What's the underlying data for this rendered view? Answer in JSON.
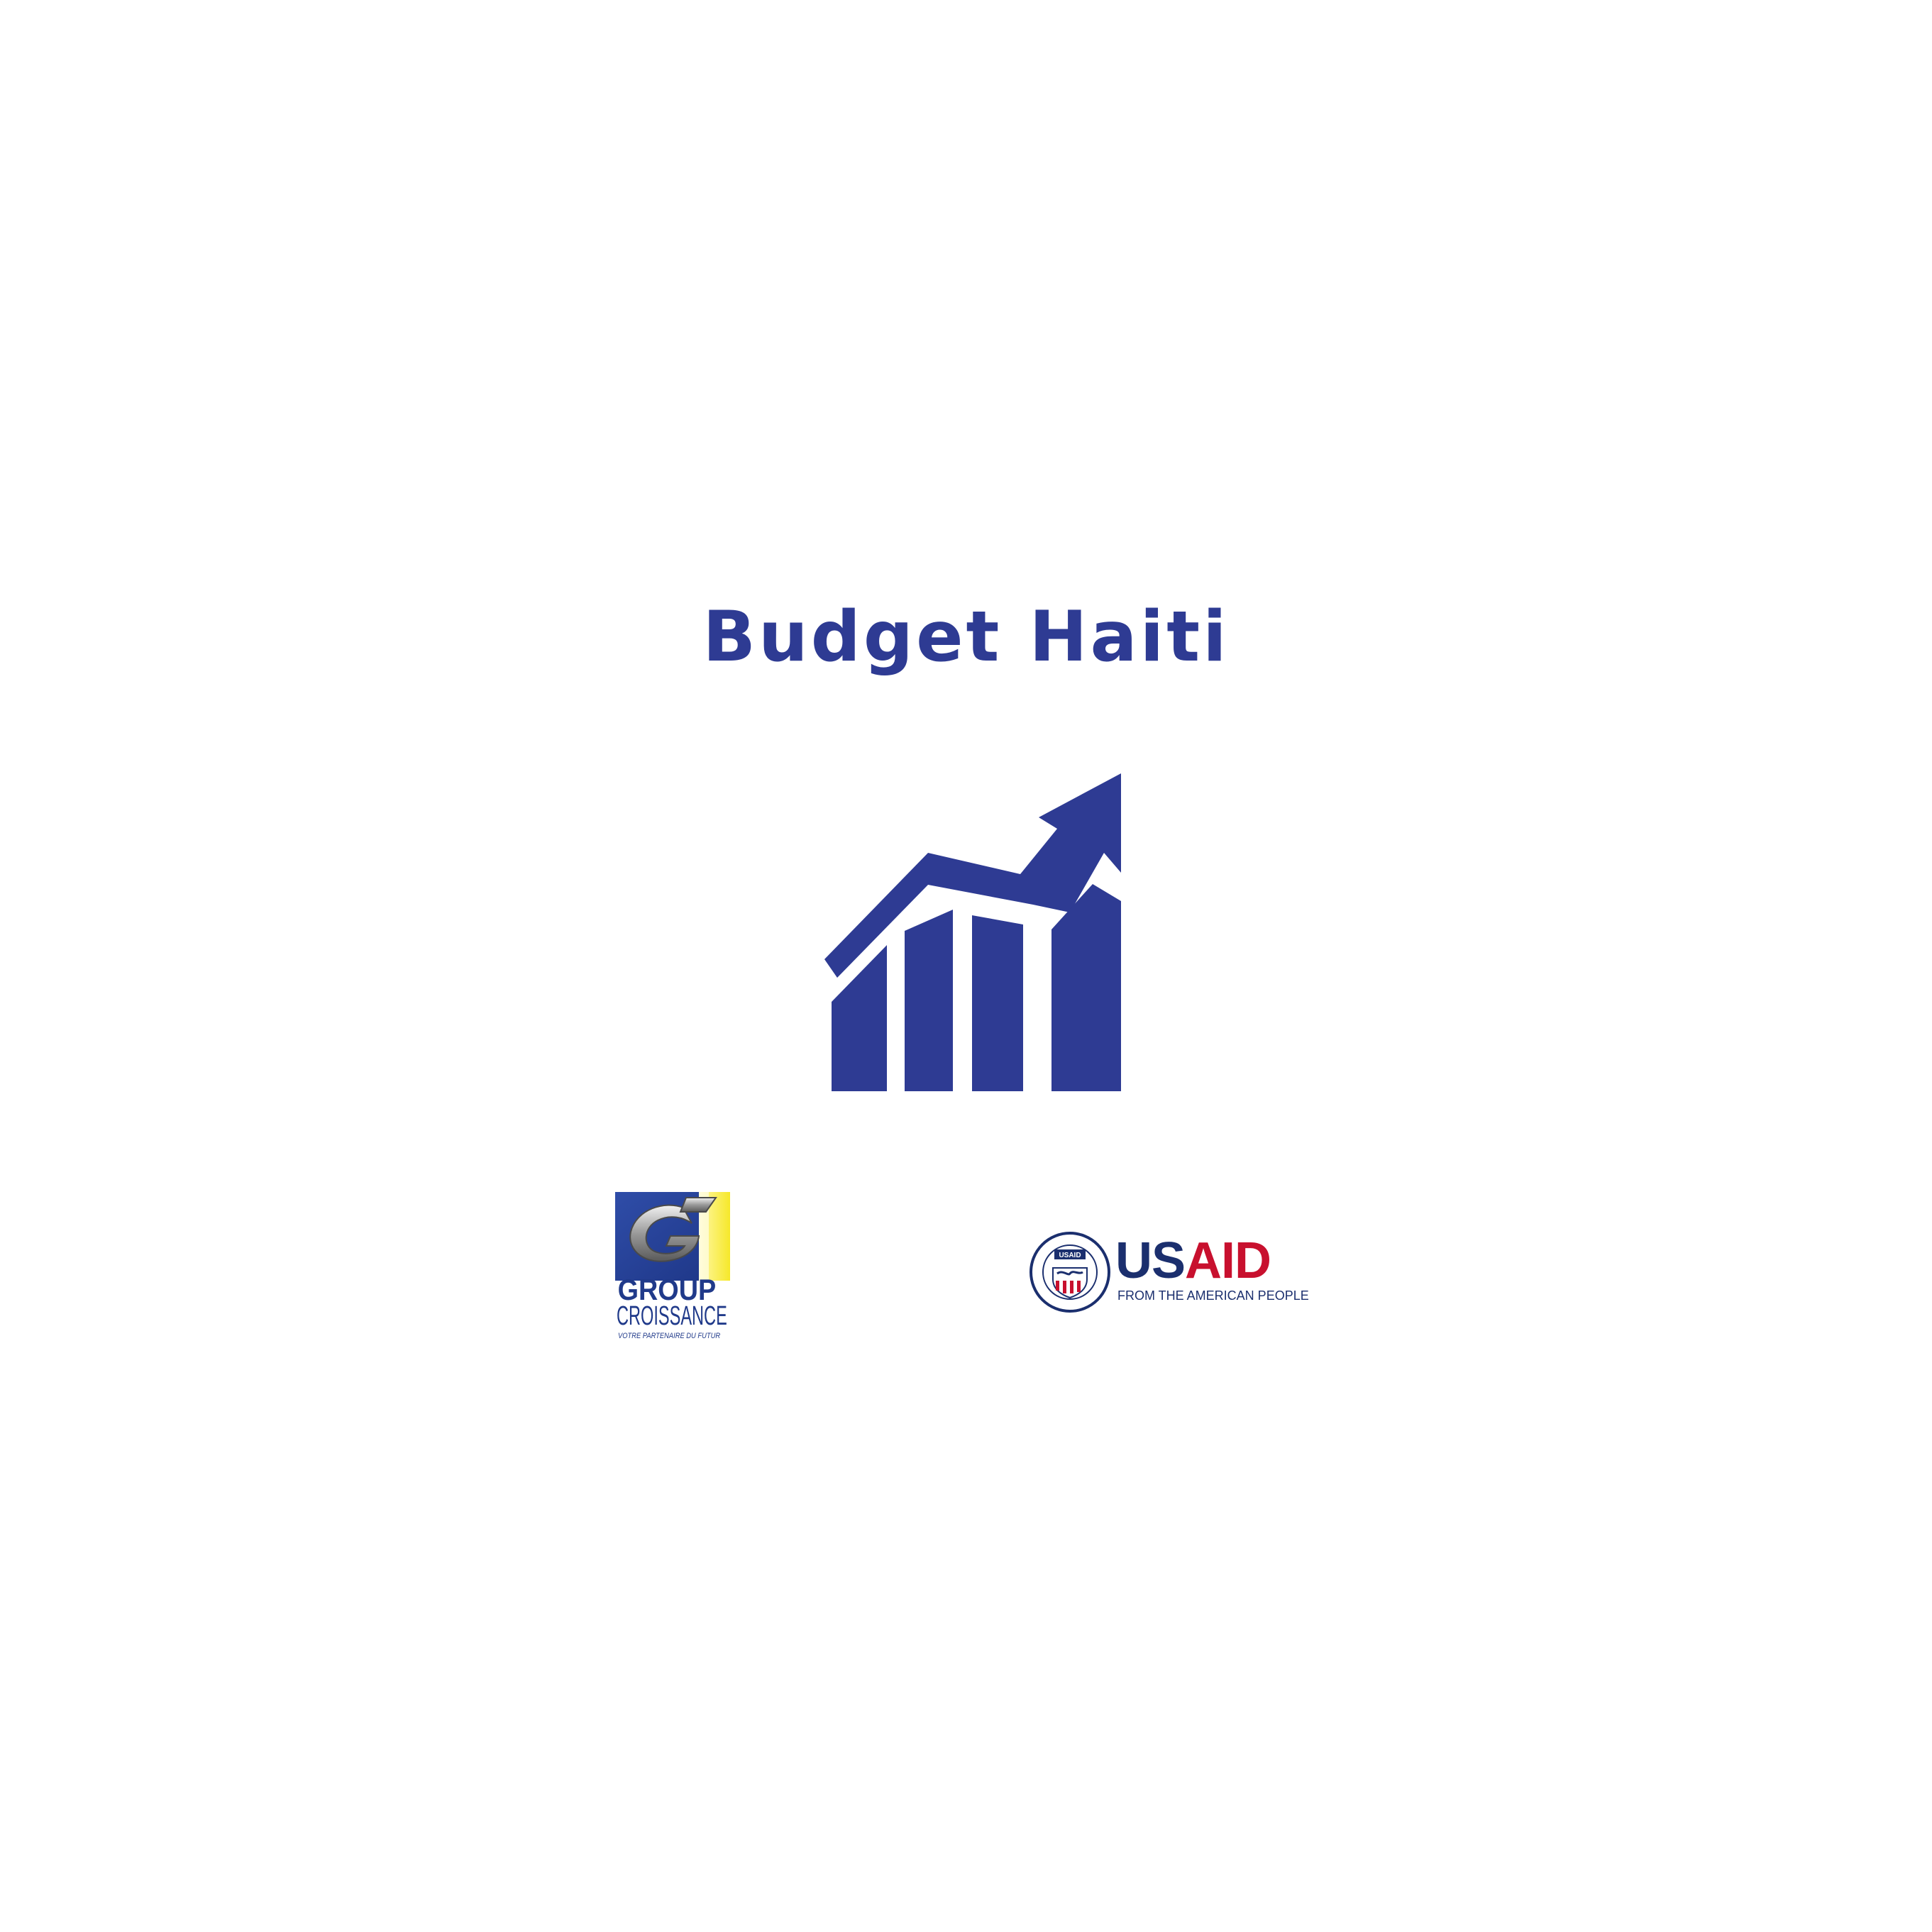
{
  "app": {
    "title": "Budget Haiti",
    "icon": "chart-growth-icon"
  },
  "logos": {
    "group_croissance": {
      "line1": "GROUP",
      "line2": "CROISSANCE",
      "tagline": "VOTRE PARTENAIRE DU FUTUR"
    },
    "usaid": {
      "name_part1": "US",
      "name_part2": "AID",
      "tagline": "FROM THE AMERICAN PEOPLE",
      "seal_text": "UNITED STATES AGENCY INTERNATIONAL DEVELOPMENT",
      "seal_label": "USAID"
    }
  },
  "colors": {
    "background": "#ffffff",
    "brand_blue": "#2e3b93",
    "usaid_navy": "#1b2f6e",
    "usaid_red": "#c8102e",
    "gc_yellow": "#f6e82a"
  }
}
